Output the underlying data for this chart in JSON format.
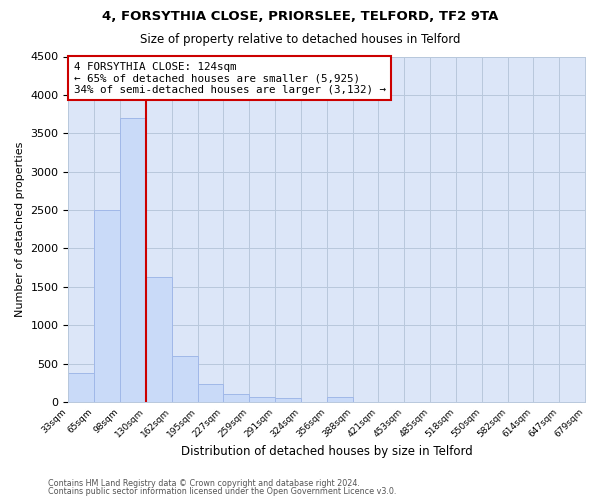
{
  "title": "4, FORSYTHIA CLOSE, PRIORSLEE, TELFORD, TF2 9TA",
  "subtitle": "Size of property relative to detached houses in Telford",
  "xlabel": "Distribution of detached houses by size in Telford",
  "ylabel": "Number of detached properties",
  "bin_labels": [
    "33sqm",
    "65sqm",
    "98sqm",
    "130sqm",
    "162sqm",
    "195sqm",
    "227sqm",
    "259sqm",
    "291sqm",
    "324sqm",
    "356sqm",
    "388sqm",
    "421sqm",
    "453sqm",
    "485sqm",
    "518sqm",
    "550sqm",
    "582sqm",
    "614sqm",
    "647sqm",
    "679sqm"
  ],
  "bar_values": [
    380,
    2500,
    3700,
    1625,
    600,
    240,
    110,
    65,
    55,
    0,
    65,
    0,
    0,
    0,
    0,
    0,
    0,
    0,
    0,
    0
  ],
  "bar_color": "#c9daf8",
  "bar_edge_color": "#a0b8e8",
  "vline_x": 3,
  "vline_color": "#cc0000",
  "annotation_title": "4 FORSYTHIA CLOSE: 124sqm",
  "annotation_line1": "← 65% of detached houses are smaller (5,925)",
  "annotation_line2": "34% of semi-detached houses are larger (3,132) →",
  "annotation_box_color": "#ffffff",
  "annotation_box_edge": "#cc0000",
  "ylim": [
    0,
    4500
  ],
  "yticks": [
    0,
    500,
    1000,
    1500,
    2000,
    2500,
    3000,
    3500,
    4000,
    4500
  ],
  "plot_bg_color": "#dce6f8",
  "grid_color": "#b8c8dc",
  "footer_line1": "Contains HM Land Registry data © Crown copyright and database right 2024.",
  "footer_line2": "Contains public sector information licensed under the Open Government Licence v3.0."
}
